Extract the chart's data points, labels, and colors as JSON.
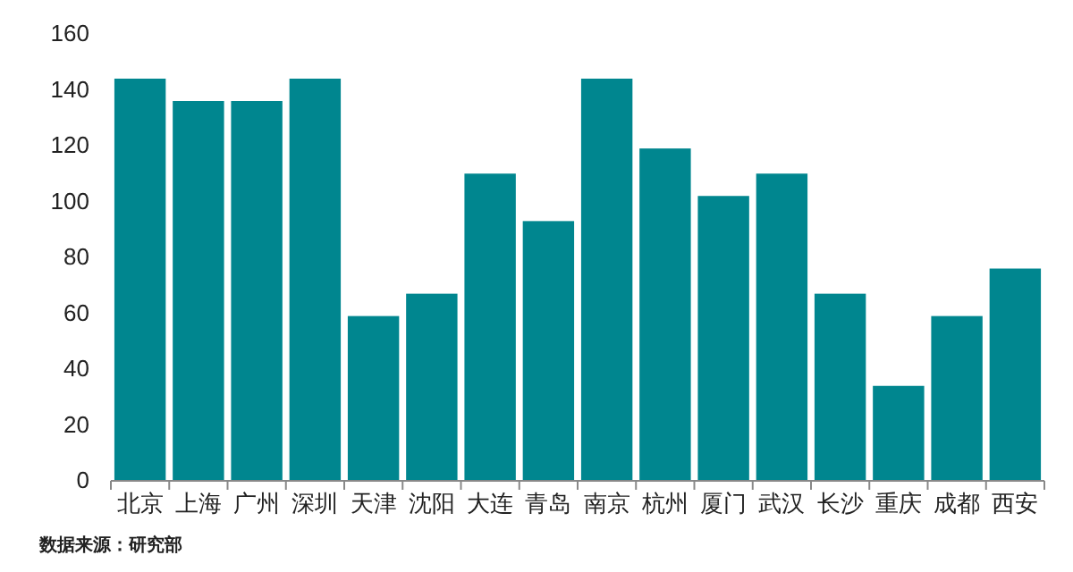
{
  "chart_data": {
    "type": "bar",
    "categories": [
      "北京",
      "上海",
      "广州",
      "深圳",
      "天津",
      "沈阳",
      "大连",
      "青岛",
      "南京",
      "杭州",
      "厦门",
      "武汉",
      "长沙",
      "重庆",
      "成都",
      "西安"
    ],
    "values": [
      144,
      136,
      136,
      144,
      59,
      67,
      110,
      93,
      144,
      119,
      102,
      110,
      67,
      34,
      59,
      76
    ],
    "color": "#00868f",
    "ylim": [
      0,
      160
    ],
    "yticks": [
      0,
      20,
      40,
      60,
      80,
      100,
      120,
      140,
      160
    ],
    "grid": false,
    "annotations": [
      "数据来源：研究部"
    ]
  }
}
